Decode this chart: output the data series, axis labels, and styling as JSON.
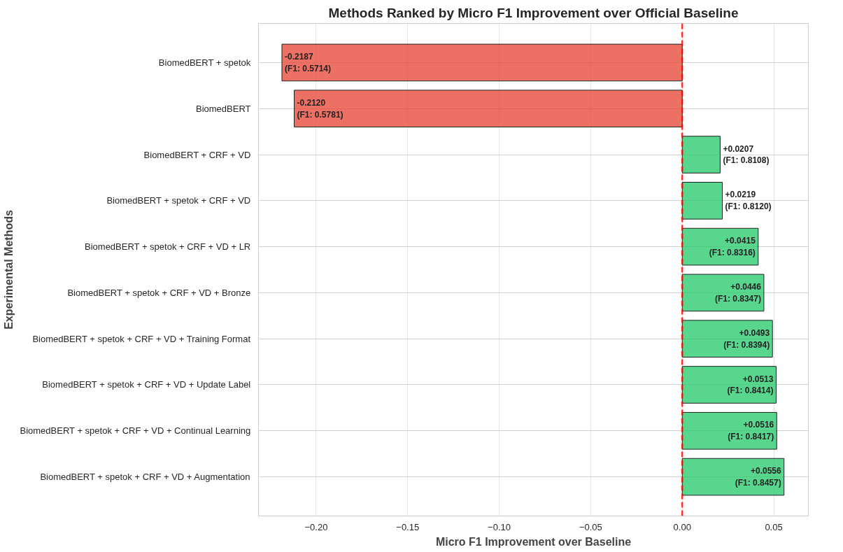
{
  "chart_data": {
    "type": "bar",
    "orientation": "horizontal",
    "title": "Methods Ranked by Micro F1 Improvement over Official Baseline",
    "xlabel": "Micro F1 Improvement over Baseline",
    "ylabel": "Experimental Methods",
    "categories": [
      "BiomedBERT + spetok",
      "BiomedBERT",
      "BiomedBERT + CRF + VD",
      "BiomedBERT + spetok + CRF + VD",
      "BiomedBERT + spetok + CRF + VD + LR",
      "BiomedBERT + spetok + CRF + VD + Bronze",
      "BiomedBERT + spetok + CRF + VD + Training Format",
      "BiomedBERT + spetok + CRF + VD + Update Label",
      "BiomedBERT + spetok + CRF + VD + Continual Learning",
      "BiomedBERT + spetok + CRF + VD + Augmentation"
    ],
    "values": [
      -0.2187,
      -0.212,
      0.0207,
      0.0219,
      0.0415,
      0.0446,
      0.0493,
      0.0513,
      0.0516,
      0.0556
    ],
    "colors": [
      "#e74c3c",
      "#e74c3c",
      "#2ecc71",
      "#2ecc71",
      "#2ecc71",
      "#2ecc71",
      "#2ecc71",
      "#2ecc71",
      "#2ecc71",
      "#2ecc71"
    ],
    "value_labels": [
      "-0.2187\n(F1: 0.5714)",
      "-0.2120\n(F1: 0.5781)",
      "+0.0207\n(F1: 0.8108)",
      "+0.0219\n(F1: 0.8120)",
      "+0.0415\n(F1: 0.8316)",
      "+0.0446\n(F1: 0.8347)",
      "+0.0493\n(F1: 0.8394)",
      "+0.0513\n(F1: 0.8414)",
      "+0.0516\n(F1: 0.8417)",
      "+0.0556\n(F1: 0.8457)"
    ],
    "xlim": [
      -0.2315,
      0.0689
    ],
    "xticks": [
      {
        "value": -0.2,
        "label": "−0.20"
      },
      {
        "value": -0.15,
        "label": "−0.15"
      },
      {
        "value": -0.1,
        "label": "−0.10"
      },
      {
        "value": -0.05,
        "label": "−0.05"
      },
      {
        "value": 0,
        "label": "0.00"
      },
      {
        "value": 0.05,
        "label": "0.05"
      }
    ],
    "ref_lines": [
      {
        "axis": "x",
        "value": 0,
        "label": null,
        "color": "#ff0000",
        "line_style": "dashed"
      }
    ],
    "grid": true,
    "legend": false
  }
}
